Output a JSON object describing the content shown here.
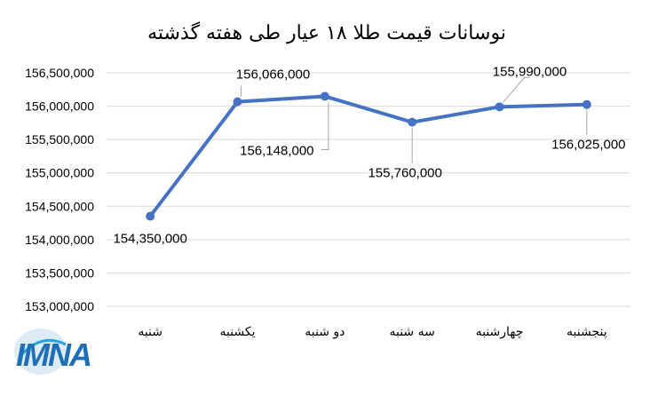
{
  "chart_data": {
    "type": "line",
    "title": "نوسانات قیمت طلا ۱۸ عیار طی هفته گذشته",
    "categories": [
      "شنبه",
      "یکشنبه",
      "دو شنبه",
      "سه شنبه",
      "چهارشنبه",
      "پنجشنبه"
    ],
    "series": [
      {
        "values": [
          154350000,
          156066000,
          156148000,
          155760000,
          155990000,
          156025000
        ],
        "data_labels": [
          "154,350,000",
          "156,066,000",
          "156,148,000",
          "155,760,000",
          "155,990,000",
          "156,025,000"
        ],
        "color": "#4472c4"
      }
    ],
    "yticks": [
      "153,000,000",
      "153,500,000",
      "154,000,000",
      "154,500,000",
      "155,000,000",
      "155,500,000",
      "156,000,000",
      "156,500,000"
    ],
    "ylim": [
      153000000,
      156500000
    ],
    "grid": true
  },
  "logo": {
    "text": "IMNA",
    "colors": [
      "#1e6fb5",
      "#2aa3db"
    ]
  }
}
